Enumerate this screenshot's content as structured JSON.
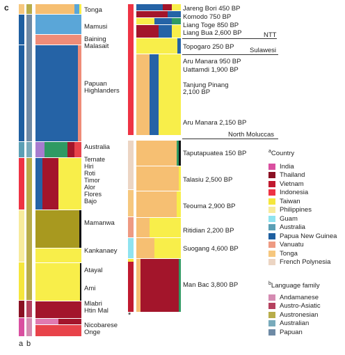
{
  "panel_label": "c",
  "axis_labels": {
    "a": "a",
    "b": "b"
  },
  "modern_groups": [
    {
      "label": "Tonga"
    },
    {
      "label": "Mamusi"
    },
    {
      "label": "Baining\nMalasait"
    },
    {
      "label": "Papuan\nHighlanders"
    },
    {
      "label": "Australia"
    },
    {
      "label": "Ternate\nHiri\nRoti\nTimor\nAlor\nFlores\nBajo"
    },
    {
      "label": "Mamanwa"
    },
    {
      "label": "Kankanaey"
    },
    {
      "label": "Atayal"
    },
    {
      "label": "Ami"
    },
    {
      "label": "Mlabri\nHtin Mal"
    },
    {
      "label": "Nicobarese\nOnge"
    }
  ],
  "ancient_groups": [
    {
      "label": "Jareng Bori 450 BP"
    },
    {
      "label": "Komodo 750 BP"
    },
    {
      "label": "Liang Toge 850 BP"
    },
    {
      "label": "Liang Bua 2,600 BP"
    },
    {
      "label": "Topogaro 250 BP"
    },
    {
      "label": "Aru Manara 950 BP"
    },
    {
      "label": "Uattamdi 1,900 BP"
    },
    {
      "label": "Tanjung Pinang\n2,100 BP"
    },
    {
      "label": "Aru Manara 2,150 BP"
    },
    {
      "label": "Taputapuatea 150 BP"
    },
    {
      "label": "Talasiu 2,500 BP"
    },
    {
      "label": "Teouma 2,900 BP"
    },
    {
      "label": "Ritidian 2,200 BP"
    },
    {
      "label": "Suogang 4,600 BP"
    },
    {
      "label": "Man Bac 3,800 BP"
    }
  ],
  "regions": [
    {
      "label": "NTT"
    },
    {
      "label": "Sulawesi"
    },
    {
      "label": "North Moluccas"
    }
  ],
  "asterisk": "*",
  "legend_country": {
    "marker": "a",
    "title": "Country",
    "items": [
      {
        "label": "India",
        "color": "#d94fa0"
      },
      {
        "label": "Thailand",
        "color": "#8a1023"
      },
      {
        "label": "Vietnam",
        "color": "#c0192f"
      },
      {
        "label": "Indonesia",
        "color": "#ee3344"
      },
      {
        "label": "Taiwan",
        "color": "#f5e63c"
      },
      {
        "label": "Philippines",
        "color": "#f7eb9c"
      },
      {
        "label": "Guam",
        "color": "#8fe3f0"
      },
      {
        "label": "Australia",
        "color": "#5b9fb5"
      },
      {
        "label": "Papua New Guinea",
        "color": "#1e5fa0"
      },
      {
        "label": "Vanuatu",
        "color": "#ee9a82"
      },
      {
        "label": "Tonga",
        "color": "#f6c77e"
      },
      {
        "label": "French Polynesia",
        "color": "#ecd5c3"
      }
    ]
  },
  "legend_language": {
    "marker": "b",
    "title": "Language family",
    "items": [
      {
        "label": "Andamanese",
        "color": "#d58bb2"
      },
      {
        "label": "Austro-Asiatic",
        "color": "#b5415e"
      },
      {
        "label": "Austronesian",
        "color": "#b8ad4a"
      },
      {
        "label": "Australian",
        "color": "#78aabb"
      },
      {
        "label": "Papuan",
        "color": "#6e8aa5"
      }
    ]
  },
  "colors": {
    "papuan_blue": "#2563a6",
    "australia_lblue": "#5aa6d8",
    "olive": "#a8991f",
    "yellow": "#f8ee4a",
    "orange": "#f6bf72",
    "maroon": "#a3152b",
    "red": "#e8434a",
    "salmon": "#ef8c78",
    "pink": "#e07ab0",
    "green": "#2f9a63",
    "purple": "#a77ccf",
    "black": "#111111"
  }
}
